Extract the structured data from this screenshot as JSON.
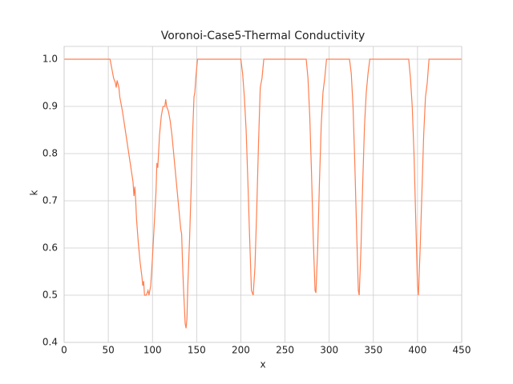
{
  "chart_data": {
    "type": "line",
    "title": "Voronoi-Case5-Thermal Conductivity",
    "x_label": "x",
    "y_label": "k",
    "x": [
      0,
      52,
      54,
      56,
      58,
      59,
      60,
      62,
      63,
      66,
      70,
      74,
      78,
      79,
      80,
      81,
      82,
      84,
      86,
      88,
      89,
      90,
      91,
      93,
      95,
      96,
      98,
      100,
      102,
      104,
      105,
      106,
      108,
      110,
      112,
      114,
      115,
      116,
      118,
      120,
      122,
      124,
      126,
      128,
      130,
      132,
      133,
      134,
      135,
      136,
      137,
      138,
      139,
      140,
      142,
      144,
      145,
      147,
      148,
      149,
      150,
      151,
      200,
      202,
      204,
      206,
      208,
      210,
      212,
      214,
      216,
      218,
      220,
      222,
      224,
      226,
      274,
      276,
      278,
      280,
      282,
      284,
      285,
      287,
      289,
      291,
      293,
      295,
      297,
      323,
      325,
      327,
      329,
      331,
      333,
      334,
      336,
      338,
      340,
      342,
      344,
      346,
      390,
      392,
      394,
      396,
      398,
      400,
      401,
      403,
      405,
      407,
      409,
      411,
      413,
      450
    ],
    "series": [
      {
        "name": "k",
        "color": "#ff7f50",
        "values": [
          1.0,
          1.0,
          0.98,
          0.96,
          0.95,
          0.94,
          0.955,
          0.94,
          0.92,
          0.89,
          0.84,
          0.79,
          0.74,
          0.71,
          0.73,
          0.7,
          0.66,
          0.61,
          0.57,
          0.54,
          0.52,
          0.53,
          0.5,
          0.5,
          0.51,
          0.5,
          0.52,
          0.58,
          0.65,
          0.72,
          0.78,
          0.77,
          0.84,
          0.88,
          0.9,
          0.9,
          0.915,
          0.9,
          0.89,
          0.87,
          0.84,
          0.8,
          0.76,
          0.72,
          0.68,
          0.64,
          0.63,
          0.57,
          0.52,
          0.48,
          0.44,
          0.43,
          0.45,
          0.52,
          0.62,
          0.74,
          0.82,
          0.92,
          0.93,
          0.96,
          0.98,
          1.0,
          1.0,
          0.97,
          0.92,
          0.85,
          0.74,
          0.62,
          0.51,
          0.5,
          0.56,
          0.68,
          0.82,
          0.94,
          0.96,
          1.0,
          1.0,
          0.96,
          0.88,
          0.76,
          0.62,
          0.51,
          0.505,
          0.6,
          0.74,
          0.86,
          0.93,
          0.96,
          1.0,
          1.0,
          0.97,
          0.9,
          0.78,
          0.64,
          0.51,
          0.5,
          0.6,
          0.74,
          0.86,
          0.93,
          0.97,
          1.0,
          1.0,
          0.96,
          0.9,
          0.8,
          0.66,
          0.52,
          0.5,
          0.6,
          0.72,
          0.84,
          0.92,
          0.95,
          1.0,
          1.0
        ]
      }
    ],
    "xlim": [
      0,
      450
    ],
    "xticks": [
      0,
      50,
      100,
      150,
      200,
      250,
      300,
      350,
      400,
      450
    ],
    "ylim": [
      0.4,
      1.0
    ],
    "yticks": [
      0.4,
      0.5,
      0.6,
      0.7,
      0.8,
      0.9,
      {
        "value": 1,
        "label": "1.0"
      }
    ],
    "grid": true
  }
}
